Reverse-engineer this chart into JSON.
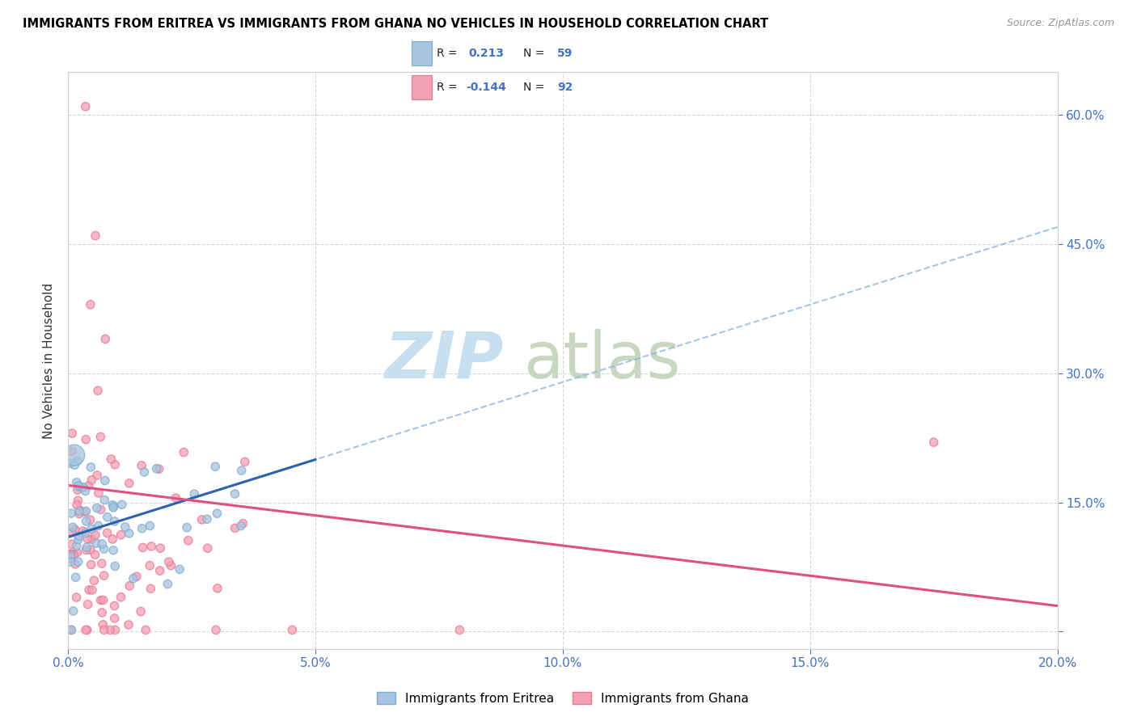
{
  "title": "IMMIGRANTS FROM ERITREA VS IMMIGRANTS FROM GHANA NO VEHICLES IN HOUSEHOLD CORRELATION CHART",
  "source": "Source: ZipAtlas.com",
  "ylabel": "No Vehicles in Household",
  "x_tick_labels": [
    "0.0%",
    "5.0%",
    "10.0%",
    "15.0%",
    "20.0%"
  ],
  "x_tick_positions": [
    0.0,
    5.0,
    10.0,
    15.0,
    20.0
  ],
  "y_tick_positions": [
    0.0,
    15.0,
    30.0,
    45.0,
    60.0
  ],
  "y_tick_labels_right": [
    "",
    "15.0%",
    "30.0%",
    "45.0%",
    "60.0%"
  ],
  "xlim": [
    0.0,
    20.0
  ],
  "ylim": [
    -2.0,
    65.0
  ],
  "eritrea_color": "#a8c4e0",
  "eritrea_edge_color": "#7aaed0",
  "ghana_color": "#f4a0b5",
  "ghana_edge_color": "#e87898",
  "eritrea_label": "Immigrants from Eritrea",
  "ghana_label": "Immigrants from Ghana",
  "eritrea_R": "0.213",
  "eritrea_N": "59",
  "ghana_R": "-0.144",
  "ghana_N": "92",
  "eritrea_trend_color": "#3060b0",
  "ghana_trend_color": "#e05080",
  "eritrea_dashed_color": "#90b8e0",
  "background_color": "#ffffff",
  "grid_color": "#cccccc",
  "legend_box_color": "#cccccc"
}
